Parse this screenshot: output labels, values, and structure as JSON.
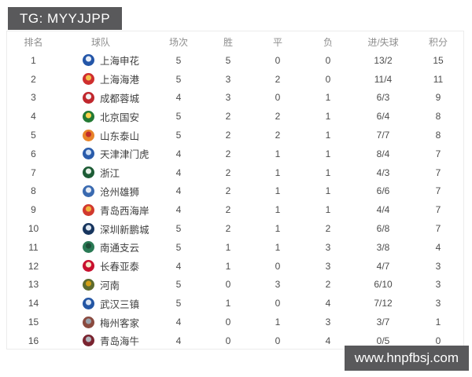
{
  "header_badge": {
    "text": "TG: MYYJJPP"
  },
  "footer_badge": {
    "text": "www.hnpfbsj.com"
  },
  "colors": {
    "badge_bg": "#59595b",
    "badge_text": "#ffffff",
    "header_text": "#8f8f8f",
    "cell_text": "#4c4c4c",
    "panel_border": "#ececec",
    "page_bg": "#ffffff"
  },
  "table": {
    "columns": [
      "排名",
      "球队",
      "场次",
      "胜",
      "平",
      "负",
      "进/失球",
      "积分"
    ],
    "rows": [
      {
        "rank": "1",
        "team": "上海申花",
        "played": "5",
        "win": "5",
        "draw": "0",
        "loss": "0",
        "goals": "13/2",
        "points": "15",
        "logo": [
          "#2456a8",
          "#e9eff9"
        ]
      },
      {
        "rank": "2",
        "team": "上海海港",
        "played": "5",
        "win": "3",
        "draw": "2",
        "loss": "0",
        "goals": "11/4",
        "points": "11",
        "logo": [
          "#cf2e2e",
          "#f3c14b"
        ]
      },
      {
        "rank": "3",
        "team": "成都蓉城",
        "played": "4",
        "win": "3",
        "draw": "0",
        "loss": "1",
        "goals": "6/3",
        "points": "9",
        "logo": [
          "#c0272d",
          "#f2f2f2"
        ]
      },
      {
        "rank": "4",
        "team": "北京国安",
        "played": "5",
        "win": "2",
        "draw": "2",
        "loss": "1",
        "goals": "6/4",
        "points": "8",
        "logo": [
          "#237a34",
          "#ffd34d"
        ]
      },
      {
        "rank": "5",
        "team": "山东泰山",
        "played": "5",
        "win": "2",
        "draw": "2",
        "loss": "1",
        "goals": "7/7",
        "points": "8",
        "logo": [
          "#e8842a",
          "#c02c2c"
        ]
      },
      {
        "rank": "6",
        "team": "天津津门虎",
        "played": "4",
        "win": "2",
        "draw": "1",
        "loss": "1",
        "goals": "8/4",
        "points": "7",
        "logo": [
          "#2a5cab",
          "#cfe0f5"
        ]
      },
      {
        "rank": "7",
        "team": "浙江",
        "played": "4",
        "win": "2",
        "draw": "1",
        "loss": "1",
        "goals": "4/3",
        "points": "7",
        "logo": [
          "#1d5c35",
          "#e8f2ea"
        ]
      },
      {
        "rank": "8",
        "team": "沧州雄狮",
        "played": "4",
        "win": "2",
        "draw": "1",
        "loss": "1",
        "goals": "6/6",
        "points": "7",
        "logo": [
          "#3a6ab0",
          "#e8edf5"
        ]
      },
      {
        "rank": "9",
        "team": "青岛西海岸",
        "played": "4",
        "win": "2",
        "draw": "1",
        "loss": "1",
        "goals": "4/4",
        "points": "7",
        "logo": [
          "#d1392e",
          "#f0b63e"
        ]
      },
      {
        "rank": "10",
        "team": "深圳新鹏城",
        "played": "5",
        "win": "2",
        "draw": "1",
        "loss": "2",
        "goals": "6/8",
        "points": "7",
        "logo": [
          "#17355e",
          "#dfe8f2"
        ]
      },
      {
        "rank": "11",
        "team": "南通支云",
        "played": "5",
        "win": "1",
        "draw": "1",
        "loss": "3",
        "goals": "3/8",
        "points": "4",
        "logo": [
          "#2a7a55",
          "#1f4d38"
        ]
      },
      {
        "rank": "12",
        "team": "长春亚泰",
        "played": "4",
        "win": "1",
        "draw": "0",
        "loss": "3",
        "goals": "4/7",
        "points": "3",
        "logo": [
          "#c8102e",
          "#f5e9c8"
        ]
      },
      {
        "rank": "13",
        "team": "河南",
        "played": "5",
        "win": "0",
        "draw": "3",
        "loss": "2",
        "goals": "6/10",
        "points": "3",
        "logo": [
          "#5d6b2f",
          "#d4a017"
        ]
      },
      {
        "rank": "14",
        "team": "武汉三镇",
        "played": "5",
        "win": "1",
        "draw": "0",
        "loss": "4",
        "goals": "7/12",
        "points": "3",
        "logo": [
          "#2456a4",
          "#dce6f5"
        ]
      },
      {
        "rank": "15",
        "team": "梅州客家",
        "played": "4",
        "win": "0",
        "draw": "1",
        "loss": "3",
        "goals": "3/7",
        "points": "1",
        "logo": [
          "#8a4a3f",
          "#9aa3ad"
        ]
      },
      {
        "rank": "16",
        "team": "青岛海牛",
        "played": "4",
        "win": "0",
        "draw": "0",
        "loss": "4",
        "goals": "0/5",
        "points": "0",
        "logo": [
          "#7a2430",
          "#b0b6bd"
        ]
      }
    ]
  }
}
